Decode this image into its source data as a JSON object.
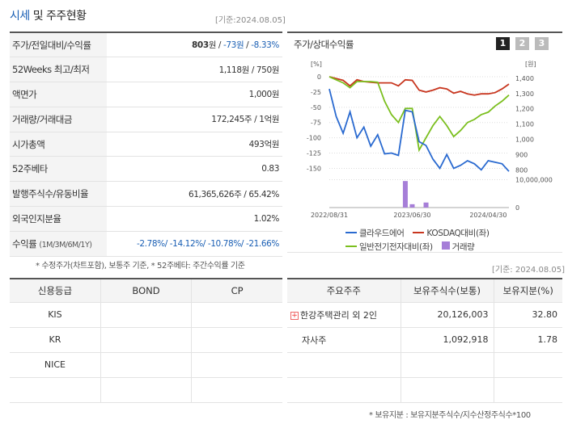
{
  "header": {
    "title_highlight": "시세",
    "title_rest": " 및 주주현황",
    "base_date": "[기준:2024.08.05]"
  },
  "quote_table": {
    "rows": [
      {
        "label": "주가/전일대비/수익률"
      },
      {
        "label": "52Weeks 최고/최저",
        "value": "1,118원 / 750원"
      },
      {
        "label": "액면가",
        "value": "1,000원"
      },
      {
        "label": "거래량/거래대금",
        "value": "172,245주 / 1억원"
      },
      {
        "label": "시가총액",
        "value": "493억원"
      },
      {
        "label": "52주베타",
        "value": "0.83"
      },
      {
        "label": "발행주식수/유동비율",
        "value": "61,365,626주 / 65.42%"
      },
      {
        "label": "외국인지분율",
        "value": "1.02%"
      },
      {
        "label": "수익률",
        "label_sub": "(1M/3M/6M/1Y)",
        "value": "-2.78%/ -14.12%/ -10.78%/ -21.66%"
      }
    ],
    "price": "803",
    "price_unit": "원 / ",
    "change": "-73원",
    "change_sep": " / ",
    "rate": "-8.33%"
  },
  "footnote_left": "* 수정주가(차트포함), 보통주 기준, * 52주베타: 주간수익률 기준",
  "chart_panel": {
    "title": "주가/상대수익률",
    "pages": [
      "1",
      "2",
      "3"
    ],
    "legend": [
      {
        "label": "클라우드에어",
        "color": "#2a6ad0"
      },
      {
        "label": "KOSDAQ대비(좌)",
        "color": "#c8361f"
      },
      {
        "label": "일반전기전자대비(좌)",
        "color": "#7bbf1e"
      },
      {
        "label": "거래량",
        "color": "#a67ed8"
      }
    ]
  },
  "chart_data": {
    "type": "line",
    "left_axis_unit": "[%]",
    "right_axis_unit": "[원]",
    "left_ticks": [
      "0",
      "-25",
      "-50",
      "-75",
      "-100",
      "-125",
      "-150"
    ],
    "right_ticks": [
      "1,400",
      "1,300",
      "1,200",
      "1,100",
      "1,000",
      "900",
      "800"
    ],
    "volume_ticks": [
      "10,000,000",
      "0"
    ],
    "x_ticks": [
      "2022/08/31",
      "2023/06/30",
      "2024/04/30"
    ],
    "ylim_left": [
      -160,
      0
    ],
    "ylim_right": [
      770,
      1410
    ],
    "series": [
      {
        "name": "클라우드에어",
        "axis": "right",
        "values": [
          1330,
          1150,
          1040,
          1180,
          1010,
          1080,
          955,
          1030,
          905,
          910,
          895,
          1190,
          1180,
          985,
          960,
          870,
          810,
          900,
          810,
          830,
          860,
          840,
          800,
          860,
          850,
          840,
          790
        ]
      },
      {
        "name": "KOSDAQ대비(좌)",
        "axis": "left",
        "values": [
          0,
          -3,
          -6,
          -15,
          -5,
          -8,
          -9,
          -10,
          -10,
          -10,
          -15,
          -5,
          -6,
          -22,
          -25,
          -22,
          -18,
          -20,
          -27,
          -24,
          -28,
          -30,
          -28,
          -28,
          -26,
          -20,
          -12
        ]
      },
      {
        "name": "일반전기전자대비(좌)",
        "axis": "left",
        "values": [
          0,
          -5,
          -10,
          -18,
          -8,
          -8,
          -8,
          -9,
          -40,
          -62,
          -75,
          -52,
          -52,
          -120,
          -100,
          -80,
          -65,
          -80,
          -98,
          -88,
          -75,
          -70,
          -62,
          -58,
          -48,
          -40,
          -30
        ]
      },
      {
        "name": "거래량",
        "axis": "volume",
        "values": [
          0,
          0,
          0,
          0,
          0,
          0,
          0,
          0,
          0,
          0,
          0,
          9500000,
          1200000,
          0,
          1800000,
          0,
          0,
          0,
          0,
          0,
          0,
          0,
          0,
          0,
          0,
          0,
          0
        ]
      }
    ]
  },
  "base_date_right": "[기준: 2024.08.05]",
  "credit_table": {
    "headers": [
      "신용등급",
      "BOND",
      "CP"
    ],
    "rows": [
      [
        "KIS",
        "",
        ""
      ],
      [
        "KR",
        "",
        ""
      ],
      [
        "NICE",
        "",
        ""
      ],
      [
        "",
        "",
        ""
      ]
    ]
  },
  "holders_table": {
    "headers": [
      "주요주주",
      "보유주식수(보통)",
      "보유지분(%)"
    ],
    "rows": [
      {
        "name": "한강주택관리 외 2인",
        "shares": "20,126,003",
        "pct": "32.80"
      },
      {
        "name": "자사주",
        "shares": "1,092,918",
        "pct": "1.78"
      }
    ]
  },
  "footnote_right": "* 보유지분 : 보유지분주식수/지수산정주식수*100"
}
